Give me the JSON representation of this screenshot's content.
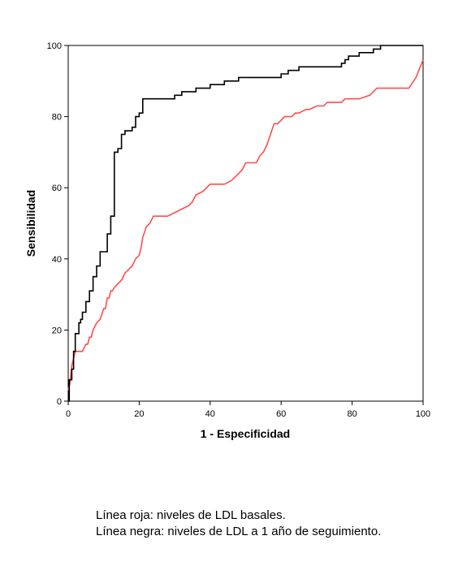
{
  "chart_data": {
    "type": "line",
    "title": "",
    "xlabel": "1 - Especificidad",
    "ylabel": "Sensibilidad",
    "xlim": [
      0,
      100
    ],
    "ylim": [
      0,
      100
    ],
    "xticks": [
      0,
      20,
      40,
      60,
      80,
      100
    ],
    "yticks": [
      0,
      20,
      40,
      60,
      80,
      100
    ],
    "grid": false,
    "series": [
      {
        "color": "#ff4d4d",
        "step": false,
        "x": [
          0,
          0.2,
          0.5,
          1,
          1.5,
          2,
          2.5,
          3,
          4,
          5,
          5.5,
          6,
          6.5,
          7,
          8,
          9,
          10,
          10.5,
          11,
          11.5,
          12,
          12.5,
          13,
          14,
          15,
          16,
          17,
          18,
          19,
          20,
          20.5,
          21,
          22,
          23,
          24,
          26,
          28,
          30,
          32,
          34,
          35,
          36,
          38,
          40,
          42,
          44,
          46,
          48,
          49,
          50,
          52,
          53,
          54,
          55,
          56,
          57,
          58,
          59,
          60,
          61,
          62,
          63,
          64,
          65,
          67,
          68,
          70,
          72,
          73,
          75,
          77,
          78,
          80,
          82,
          85,
          86,
          87,
          88,
          90,
          92,
          94,
          96,
          98,
          100
        ],
        "y": [
          3,
          4,
          5,
          10,
          12,
          14,
          14,
          14,
          14,
          16,
          16,
          18,
          18,
          20,
          22,
          23,
          26,
          26,
          29,
          29,
          31,
          31,
          32,
          33,
          34,
          36,
          37,
          38,
          40,
          41,
          43,
          46,
          49,
          50,
          52,
          52,
          52,
          53,
          54,
          55,
          56,
          58,
          59,
          61,
          61,
          61,
          62,
          64,
          65,
          67,
          67,
          67,
          69,
          70,
          72,
          75,
          78,
          78,
          79,
          80,
          80,
          80,
          81,
          81,
          82,
          82,
          83,
          83,
          84,
          84,
          84,
          85,
          85,
          85,
          86,
          87,
          88,
          88,
          88,
          88,
          88,
          88,
          91,
          96
        ]
      },
      {
        "color": "#000000",
        "step": true,
        "x": [
          0,
          0.3,
          1,
          1.5,
          2,
          3,
          3.5,
          4,
          5,
          6,
          7,
          8,
          9,
          10,
          11,
          12,
          13,
          14,
          15,
          16,
          17,
          18,
          19,
          20,
          21,
          22,
          24,
          28,
          30,
          32,
          36,
          38,
          40,
          44,
          48,
          52,
          56,
          58,
          60,
          62,
          65,
          68,
          70,
          72,
          75,
          77,
          78,
          79,
          80,
          82,
          84,
          86,
          88,
          90,
          92,
          95,
          98,
          100
        ],
        "y": [
          0,
          6,
          9,
          14,
          19,
          22,
          23,
          25,
          28,
          31,
          35,
          38,
          42,
          42,
          47,
          52,
          70,
          71,
          75,
          76,
          76,
          77,
          80,
          81,
          85,
          85,
          85,
          85,
          86,
          87,
          88,
          88,
          89,
          90,
          91,
          91,
          91,
          91,
          92,
          93,
          94,
          94,
          94,
          94,
          94,
          95,
          96,
          97,
          97,
          98,
          98,
          99,
          100,
          100,
          100,
          100,
          100,
          100
        ]
      }
    ]
  },
  "caption": {
    "line1": "Línea roja: niveles de LDL basales.",
    "line2": "Línea negra: niveles de LDL a 1 año de seguimiento."
  }
}
